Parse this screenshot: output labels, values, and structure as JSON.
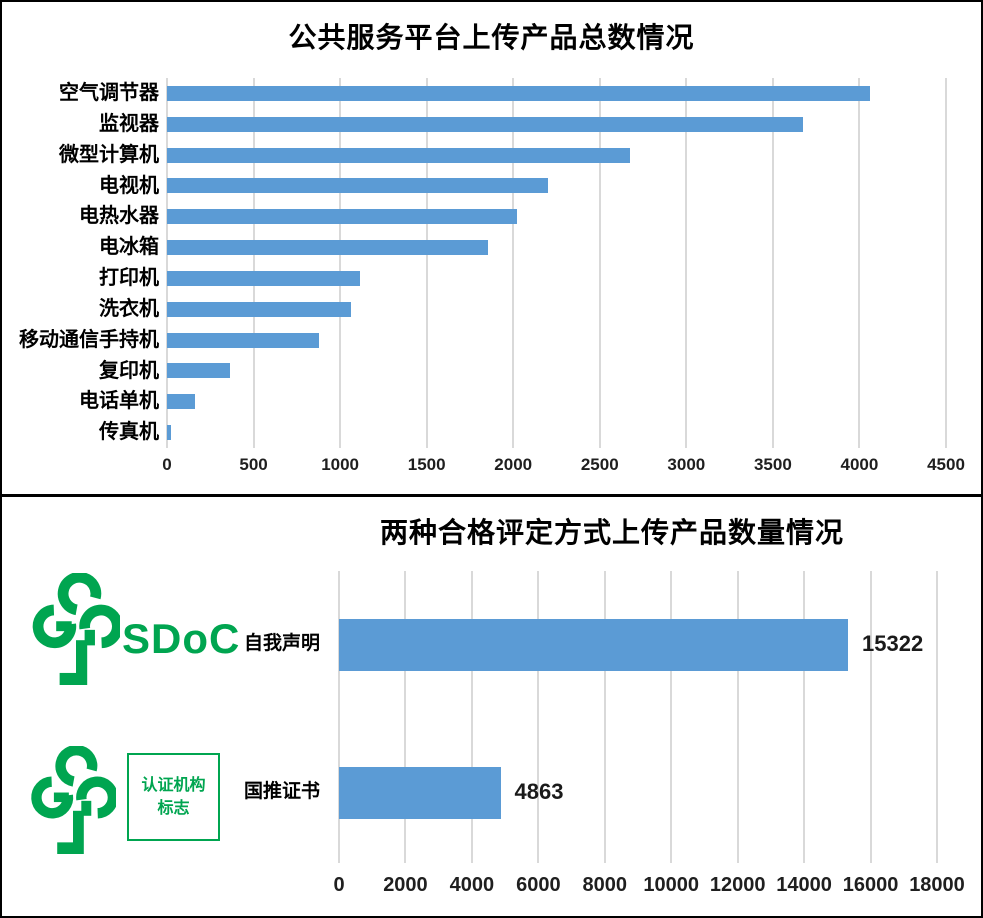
{
  "page": {
    "background": "#ffffff",
    "border_color": "#000000",
    "accent_blue": "#5b9bd5",
    "accent_green": "#00a550"
  },
  "chart_data": [
    {
      "type": "bar",
      "orientation": "horizontal",
      "title": "公共服务平台上传产品总数情况",
      "categories": [
        "空气调节器",
        "监视器",
        "微型计算机",
        "电视机",
        "电热水器",
        "电冰箱",
        "打印机",
        "洗衣机",
        "移动通信手持机",
        "复印机",
        "电话单机",
        "传真机"
      ],
      "values": [
        4060,
        3675,
        2675,
        2200,
        2020,
        1855,
        1115,
        1065,
        880,
        365,
        160,
        25
      ],
      "xlim": [
        0,
        4500
      ],
      "x_ticks": [
        0,
        500,
        1000,
        1500,
        2000,
        2500,
        3000,
        3500,
        4000,
        4500
      ],
      "grid": true,
      "grid_color": "#d9d9d9",
      "bar_color": "#5b9bd5",
      "legend": "none",
      "data_labels": null
    },
    {
      "type": "bar",
      "orientation": "horizontal",
      "title": "两种合格评定方式上传产品数量情况",
      "categories": [
        "自我声明",
        "国推证书"
      ],
      "values": [
        15322,
        4863
      ],
      "data_labels": [
        "15322",
        "4863"
      ],
      "xlim": [
        0,
        18000
      ],
      "x_ticks": [
        0,
        2000,
        4000,
        6000,
        8000,
        10000,
        12000,
        14000,
        16000,
        18000
      ],
      "grid": true,
      "grid_color": "#d9d9d9",
      "bar_color": "#5b9bd5",
      "legend": "none"
    }
  ],
  "logos": {
    "green": "#00a550",
    "sdoc": {
      "mark": "china-green-product-tree",
      "label": "SDoC"
    },
    "cert": {
      "mark": "china-green-product-tree",
      "box_lines": [
        "认证机构",
        "标志"
      ]
    }
  }
}
